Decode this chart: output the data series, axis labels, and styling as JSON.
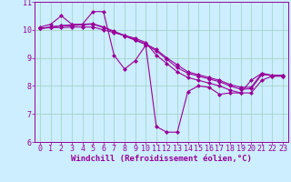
{
  "xlabel": "Windchill (Refroidissement éolien,°C)",
  "background_color": "#cceeff",
  "line_color": "#990099",
  "xlim": [
    -0.5,
    23.5
  ],
  "ylim": [
    6,
    11
  ],
  "xticks": [
    0,
    1,
    2,
    3,
    4,
    5,
    6,
    7,
    8,
    9,
    10,
    11,
    12,
    13,
    14,
    15,
    16,
    17,
    18,
    19,
    20,
    21,
    22,
    23
  ],
  "yticks": [
    6,
    7,
    8,
    9,
    10,
    11
  ],
  "series": [
    [
      10.1,
      10.2,
      10.5,
      10.2,
      10.2,
      10.65,
      10.65,
      9.1,
      8.6,
      8.9,
      9.45,
      6.55,
      6.35,
      6.35,
      7.8,
      8.0,
      7.95,
      7.7,
      7.75,
      7.75,
      8.2,
      8.45,
      8.35,
      8.35
    ],
    [
      10.05,
      10.08,
      10.08,
      10.1,
      10.1,
      10.1,
      10.0,
      9.9,
      9.8,
      9.7,
      9.55,
      9.1,
      8.8,
      8.5,
      8.3,
      8.2,
      8.1,
      8.0,
      7.85,
      7.75,
      7.75,
      8.2,
      8.35,
      8.35
    ],
    [
      10.05,
      10.1,
      10.15,
      10.15,
      10.18,
      10.2,
      10.08,
      9.93,
      9.78,
      9.63,
      9.48,
      9.25,
      8.95,
      8.65,
      8.45,
      8.35,
      8.25,
      8.15,
      8.0,
      7.88,
      7.9,
      8.4,
      8.38,
      8.38
    ],
    [
      10.05,
      10.1,
      10.15,
      10.18,
      10.2,
      10.22,
      10.1,
      9.95,
      9.8,
      9.65,
      9.5,
      9.3,
      9.0,
      8.75,
      8.5,
      8.4,
      8.3,
      8.2,
      8.05,
      7.95,
      7.95,
      8.45,
      8.38,
      8.38
    ]
  ],
  "marker": "D",
  "markersize": 2.0,
  "linewidth": 0.8,
  "grid_color": "#9dcfbf",
  "xlabel_fontsize": 6.5,
  "tick_fontsize": 6.0
}
